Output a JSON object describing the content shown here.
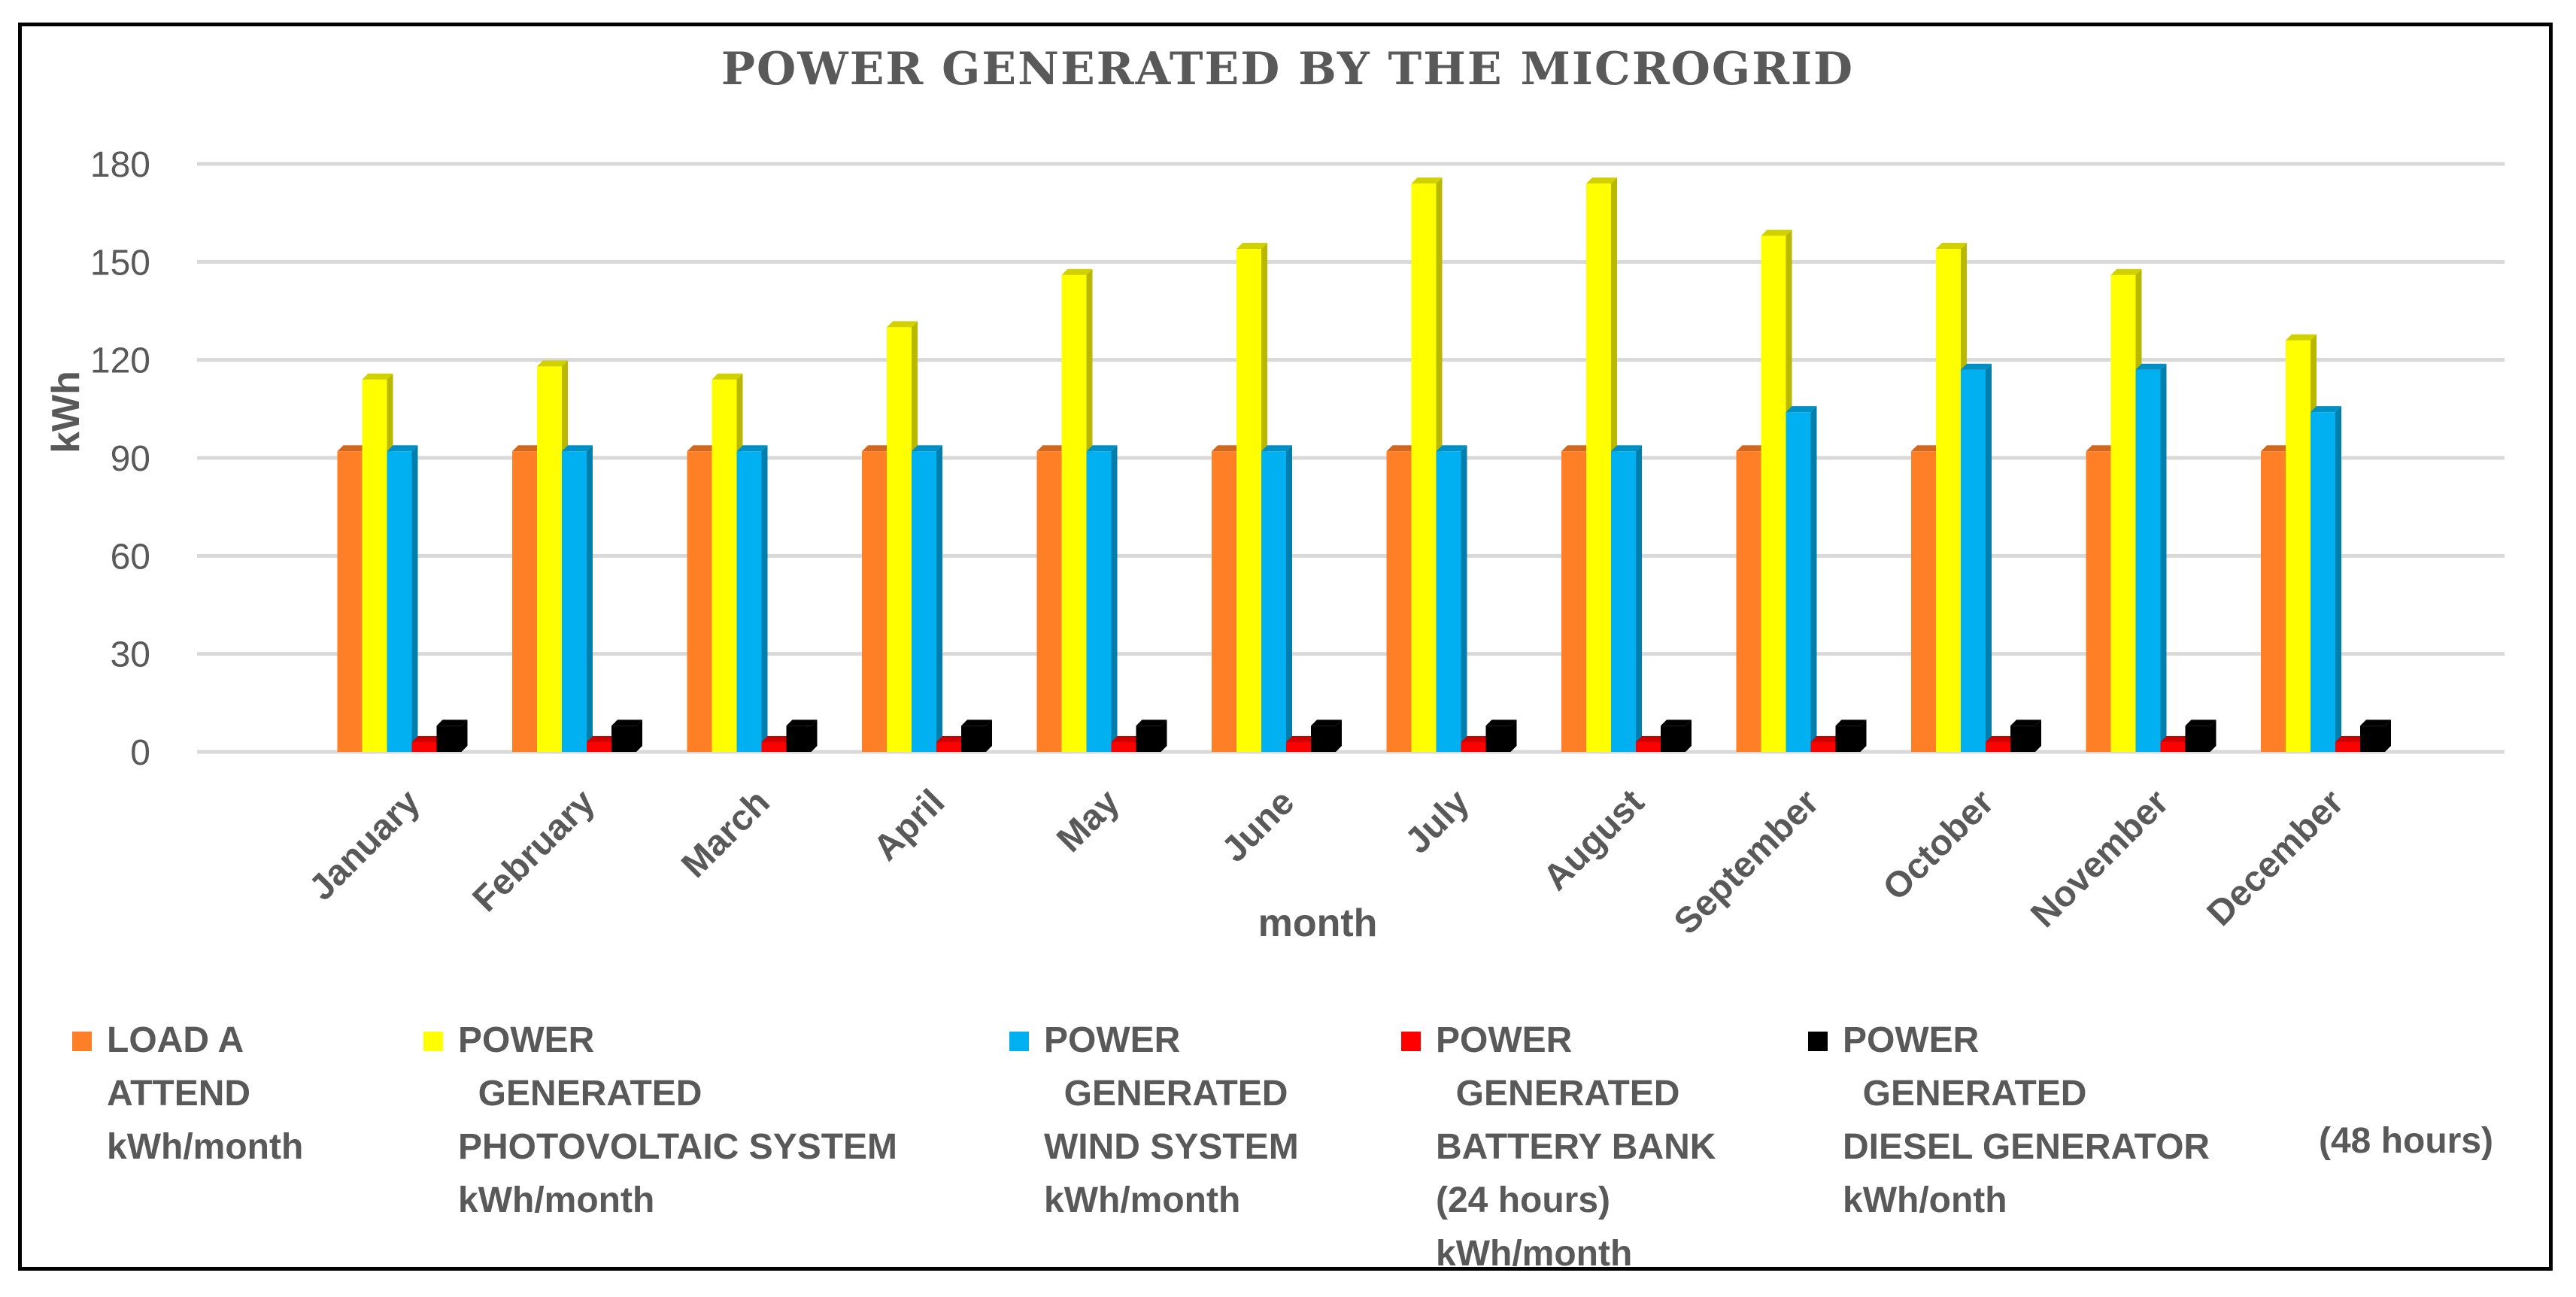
{
  "chart_data": {
    "type": "bar",
    "title": "POWER GENERATED BY THE MICROGRID",
    "xlabel": "month",
    "ylabel": "kWh",
    "ylim": [
      0,
      180
    ],
    "yticks": [
      "0",
      "30",
      "60",
      "90",
      "120",
      "150",
      "180"
    ],
    "categories": [
      "January",
      "February",
      "March",
      "April",
      "May",
      "June",
      "July",
      "August",
      "September",
      "October",
      "November",
      "December"
    ],
    "series": [
      {
        "name": "LOAD A ATTEND kWh/month",
        "color": "#FF7F27",
        "values": [
          92,
          92,
          92,
          92,
          92,
          92,
          92,
          92,
          92,
          92,
          92,
          92
        ]
      },
      {
        "name": "POWER GENERATED PHOTOVOLTAIC SYSTEM kWh/month",
        "color": "#FFFF00",
        "values": [
          114,
          118,
          114,
          130,
          146,
          154,
          174,
          174,
          158,
          154,
          146,
          126
        ]
      },
      {
        "name": "POWER GENERATED WIND SYSTEM kWh/month",
        "color": "#00B0F0",
        "values": [
          92,
          92,
          92,
          92,
          92,
          92,
          92,
          92,
          104,
          117,
          117,
          104
        ]
      },
      {
        "name": "POWER GENERATED BATTERY BANK (24 hours) kWh/month",
        "color": "#FF0000",
        "values": [
          3,
          3,
          3,
          3,
          3,
          3,
          3,
          3,
          3,
          3,
          3,
          3
        ]
      },
      {
        "name": "POWER GENERATED DIESEL GENERATOR (48 hours) kWh/onth",
        "color": "#000000",
        "values": [
          8,
          8,
          8,
          8,
          8,
          8,
          8,
          8,
          8,
          8,
          8,
          8
        ]
      }
    ],
    "grid": true,
    "legend_position": "bottom"
  },
  "legend": [
    {
      "text": "LOAD A\nATTEND\nkWh/month",
      "color": "#FF7F27"
    },
    {
      "text": "POWER\n  GENERATED\nPHOTOVOLTAIC SYSTEM\nkWh/month",
      "color": "#FFFF00"
    },
    {
      "text": "POWER\n  GENERATED\nWIND SYSTEM\nkWh/month",
      "color": "#00B0F0"
    },
    {
      "text": "POWER\n  GENERATED\nBATTERY BANK\n(24 hours)\nkWh/month",
      "color": "#FF0000"
    },
    {
      "text": "POWER\n  GENERATED\nDIESEL GENERATOR\nkWh/onth",
      "color": "#000000"
    }
  ],
  "legend_extra": "(48 hours)"
}
